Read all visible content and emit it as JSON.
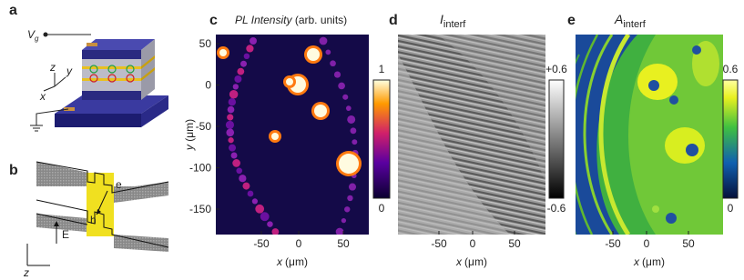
{
  "panel_a": {
    "label": "a",
    "gate_label": "V",
    "gate_subscript": "g",
    "axis_z": "z",
    "axis_y": "y",
    "axis_x": "x"
  },
  "panel_b": {
    "label": "b",
    "electron": "e",
    "hole": "h",
    "field": "E",
    "axis_z": "z"
  },
  "panel_c": {
    "label": "c",
    "title": "PL Intensity",
    "title_suffix": "(arb. units)",
    "xlabel": "x",
    "xunit": "(μm)",
    "ylabel": "y",
    "yunit": "(μm)",
    "xticks": [
      "-50",
      "0",
      "50"
    ],
    "yticks": [
      "50",
      "0",
      "-50",
      "-100",
      "-150"
    ],
    "colorbar_top": "1",
    "colorbar_bottom": "0"
  },
  "panel_d": {
    "label": "d",
    "title": "I",
    "title_subscript": "interf",
    "xlabel": "x",
    "xunit": "(μm)",
    "xticks": [
      "-50",
      "0",
      "50"
    ],
    "colorbar_top": "+0.6",
    "colorbar_bottom": "-0.6"
  },
  "panel_e": {
    "label": "e",
    "title": "A",
    "title_subscript": "interf",
    "xlabel": "x",
    "xunit": "(μm)",
    "xticks": [
      "-50",
      "0",
      "50"
    ],
    "colorbar_top": "0.6",
    "colorbar_bottom": "0"
  }
}
